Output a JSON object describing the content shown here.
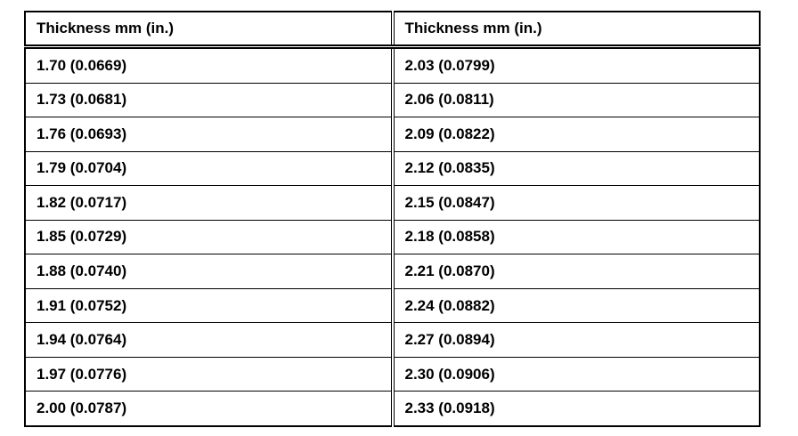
{
  "table": {
    "header": [
      "Thickness mm (in.)",
      "Thickness mm (in.)"
    ],
    "rows": [
      [
        "1.70 (0.0669)",
        "2.03 (0.0799)"
      ],
      [
        "1.73 (0.0681)",
        "2.06 (0.0811)"
      ],
      [
        "1.76 (0.0693)",
        "2.09 (0.0822)"
      ],
      [
        "1.79 (0.0704)",
        "2.12 (0.0835)"
      ],
      [
        "1.82 (0.0717)",
        "2.15 (0.0847)"
      ],
      [
        "1.85 (0.0729)",
        "2.18 (0.0858)"
      ],
      [
        "1.88 (0.0740)",
        "2.21 (0.0870)"
      ],
      [
        "1.91 (0.0752)",
        "2.24 (0.0882)"
      ],
      [
        "1.94 (0.0764)",
        "2.27 (0.0894)"
      ],
      [
        "1.97 (0.0776)",
        "2.30 (0.0906)"
      ],
      [
        "2.00 (0.0787)",
        "2.33 (0.0918)"
      ]
    ]
  }
}
